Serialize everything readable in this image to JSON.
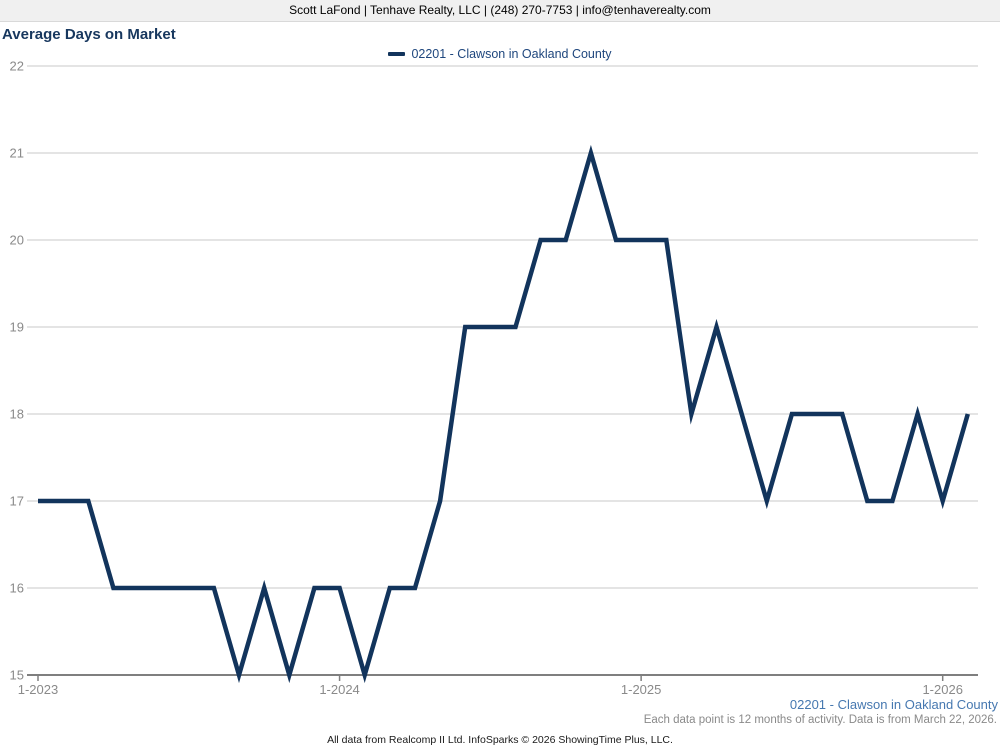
{
  "header": {
    "contact_line": "Scott LaFond | Tenhave Realty, LLC | (248) 270-7753 | info@tenhaverealty.com"
  },
  "title": "Average Days on Market",
  "legend": {
    "label": "02201 - Clawson in Oakland County"
  },
  "footer": {
    "series_label": "02201 - Clawson in Oakland County",
    "data_note": "Each data point is 12 months of activity. Data is from March 22, 2026.",
    "attribution": "All data from Realcomp II Ltd. InfoSparks © 2026 ShowingTime Plus, LLC."
  },
  "colors": {
    "header_bg": "#f0f0f0",
    "title": "#17375e",
    "legend_text": "#1e467d",
    "line": "#12345c",
    "gridline": "#c9c9c9",
    "axis_line": "#7f7f7f",
    "axis_text": "#8a8a8a",
    "footer_series": "#4678b0",
    "footer_note": "#8a8a8a"
  },
  "chart_data": {
    "type": "line",
    "title": "Average Days on Market",
    "x": [
      "1-2023",
      "2-2023",
      "3-2023",
      "4-2023",
      "5-2023",
      "6-2023",
      "7-2023",
      "8-2023",
      "9-2023",
      "10-2023",
      "11-2023",
      "12-2023",
      "1-2024",
      "2-2024",
      "3-2024",
      "4-2024",
      "5-2024",
      "6-2024",
      "7-2024",
      "8-2024",
      "9-2024",
      "10-2024",
      "11-2024",
      "12-2024",
      "1-2025",
      "2-2025",
      "3-2025",
      "4-2025",
      "5-2025",
      "6-2025",
      "7-2025",
      "8-2025",
      "9-2025",
      "10-2025",
      "11-2025",
      "12-2025",
      "1-2026",
      "2-2026"
    ],
    "series": [
      {
        "name": "02201 - Clawson in Oakland County",
        "color": "#12345c",
        "values": [
          17,
          17,
          17,
          16,
          16,
          16,
          16,
          16,
          15,
          16,
          15,
          16,
          16,
          15,
          16,
          16,
          17,
          19,
          19,
          19,
          20,
          20,
          21,
          20,
          20,
          20,
          18,
          19,
          18,
          17,
          18,
          18,
          18,
          17,
          17,
          18,
          17,
          18
        ]
      }
    ],
    "x_tick_labels": [
      "1-2023",
      "1-2024",
      "1-2025",
      "1-2026"
    ],
    "y_ticks": [
      22,
      21,
      20,
      19,
      18,
      17,
      16,
      15
    ],
    "ylim": [
      15,
      22
    ],
    "xlabel": "",
    "ylabel": "",
    "grid": "horizontal",
    "legend_position": "top-center"
  }
}
